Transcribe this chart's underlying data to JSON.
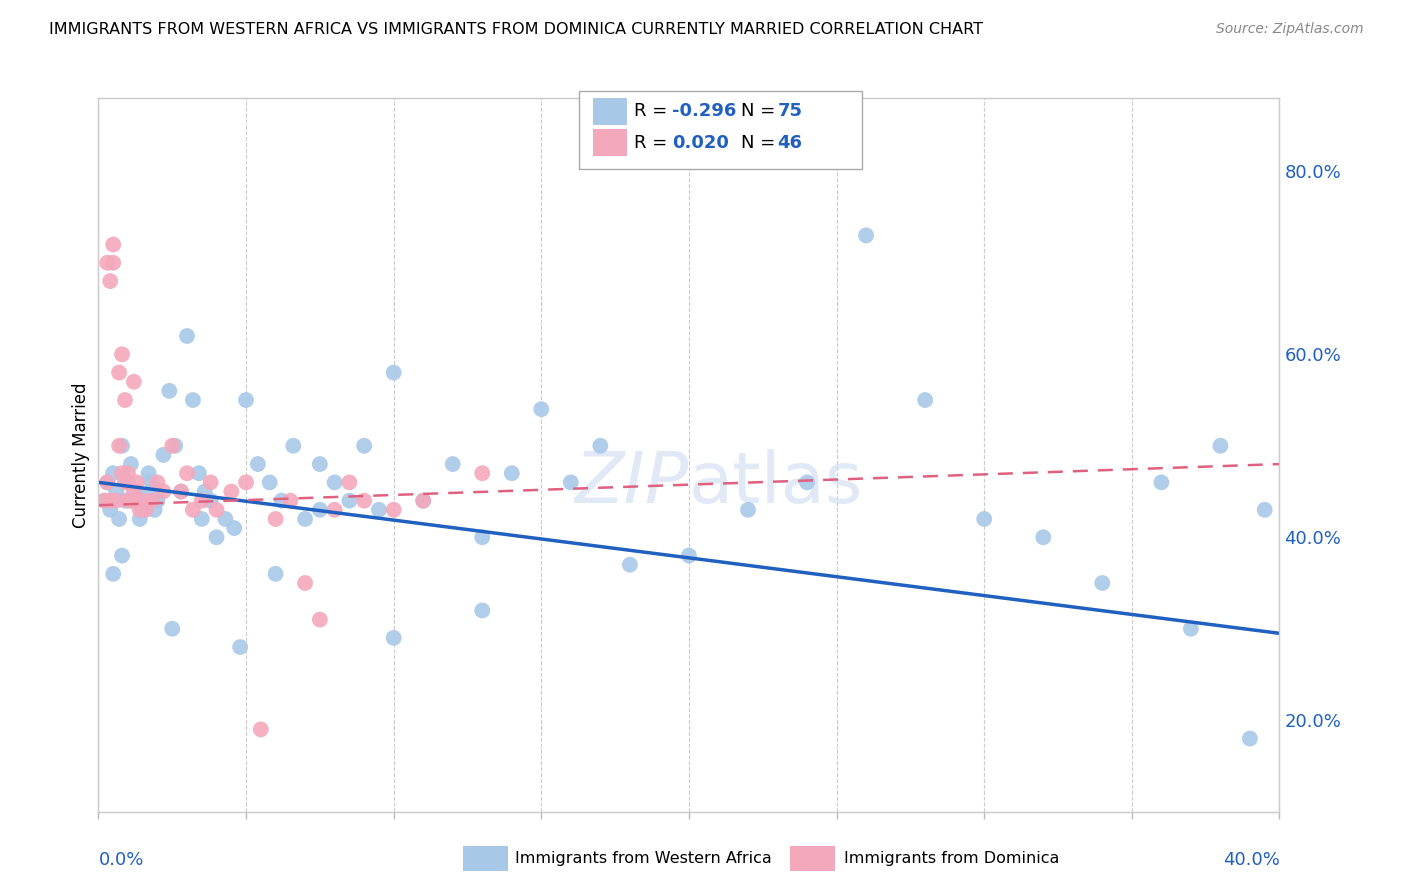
{
  "title": "IMMIGRANTS FROM WESTERN AFRICA VS IMMIGRANTS FROM DOMINICA CURRENTLY MARRIED CORRELATION CHART",
  "source": "Source: ZipAtlas.com",
  "ylabel": "Currently Married",
  "ylabel_right_ticks": [
    "20.0%",
    "40.0%",
    "60.0%",
    "80.0%"
  ],
  "ylabel_right_vals": [
    0.2,
    0.4,
    0.6,
    0.8
  ],
  "xlim": [
    0.0,
    0.4
  ],
  "ylim": [
    0.1,
    0.88
  ],
  "blue_color": "#a8c8e8",
  "pink_color": "#f4a8bc",
  "blue_line_color": "#2060c0",
  "pink_line_color": "#e06080",
  "legend_label1": "Immigrants from Western Africa",
  "legend_label2": "Immigrants from Dominica",
  "blue_scatter_x": [
    0.002,
    0.003,
    0.004,
    0.005,
    0.006,
    0.007,
    0.008,
    0.009,
    0.01,
    0.011,
    0.012,
    0.013,
    0.014,
    0.015,
    0.016,
    0.017,
    0.018,
    0.019,
    0.02,
    0.022,
    0.024,
    0.026,
    0.028,
    0.03,
    0.032,
    0.034,
    0.036,
    0.038,
    0.04,
    0.043,
    0.046,
    0.05,
    0.054,
    0.058,
    0.062,
    0.066,
    0.07,
    0.075,
    0.08,
    0.085,
    0.09,
    0.095,
    0.1,
    0.11,
    0.12,
    0.13,
    0.14,
    0.15,
    0.16,
    0.17,
    0.18,
    0.2,
    0.22,
    0.24,
    0.26,
    0.28,
    0.3,
    0.32,
    0.34,
    0.36,
    0.37,
    0.38,
    0.39,
    0.395,
    0.005,
    0.008,
    0.012,
    0.018,
    0.025,
    0.035,
    0.048,
    0.06,
    0.075,
    0.1,
    0.13
  ],
  "blue_scatter_y": [
    0.44,
    0.46,
    0.43,
    0.47,
    0.45,
    0.42,
    0.5,
    0.44,
    0.46,
    0.48,
    0.44,
    0.45,
    0.42,
    0.43,
    0.44,
    0.47,
    0.45,
    0.43,
    0.44,
    0.49,
    0.56,
    0.5,
    0.45,
    0.62,
    0.55,
    0.47,
    0.45,
    0.44,
    0.4,
    0.42,
    0.41,
    0.55,
    0.48,
    0.46,
    0.44,
    0.5,
    0.42,
    0.48,
    0.46,
    0.44,
    0.5,
    0.43,
    0.58,
    0.44,
    0.48,
    0.4,
    0.47,
    0.54,
    0.46,
    0.5,
    0.37,
    0.38,
    0.43,
    0.46,
    0.73,
    0.55,
    0.42,
    0.4,
    0.35,
    0.46,
    0.3,
    0.5,
    0.18,
    0.43,
    0.36,
    0.38,
    0.44,
    0.46,
    0.3,
    0.42,
    0.28,
    0.36,
    0.43,
    0.29,
    0.32
  ],
  "pink_scatter_x": [
    0.002,
    0.003,
    0.003,
    0.004,
    0.004,
    0.005,
    0.005,
    0.006,
    0.007,
    0.007,
    0.008,
    0.008,
    0.009,
    0.009,
    0.01,
    0.01,
    0.011,
    0.012,
    0.012,
    0.013,
    0.014,
    0.015,
    0.016,
    0.018,
    0.02,
    0.022,
    0.025,
    0.028,
    0.03,
    0.032,
    0.035,
    0.038,
    0.04,
    0.045,
    0.05,
    0.055,
    0.06,
    0.065,
    0.07,
    0.075,
    0.08,
    0.085,
    0.09,
    0.1,
    0.11,
    0.13
  ],
  "pink_scatter_y": [
    0.44,
    0.46,
    0.7,
    0.68,
    0.44,
    0.7,
    0.72,
    0.44,
    0.58,
    0.5,
    0.47,
    0.6,
    0.46,
    0.55,
    0.47,
    0.44,
    0.44,
    0.45,
    0.57,
    0.46,
    0.43,
    0.44,
    0.43,
    0.44,
    0.46,
    0.45,
    0.5,
    0.45,
    0.47,
    0.43,
    0.44,
    0.46,
    0.43,
    0.45,
    0.46,
    0.19,
    0.42,
    0.44,
    0.35,
    0.31,
    0.43,
    0.46,
    0.44,
    0.43,
    0.44,
    0.47
  ]
}
